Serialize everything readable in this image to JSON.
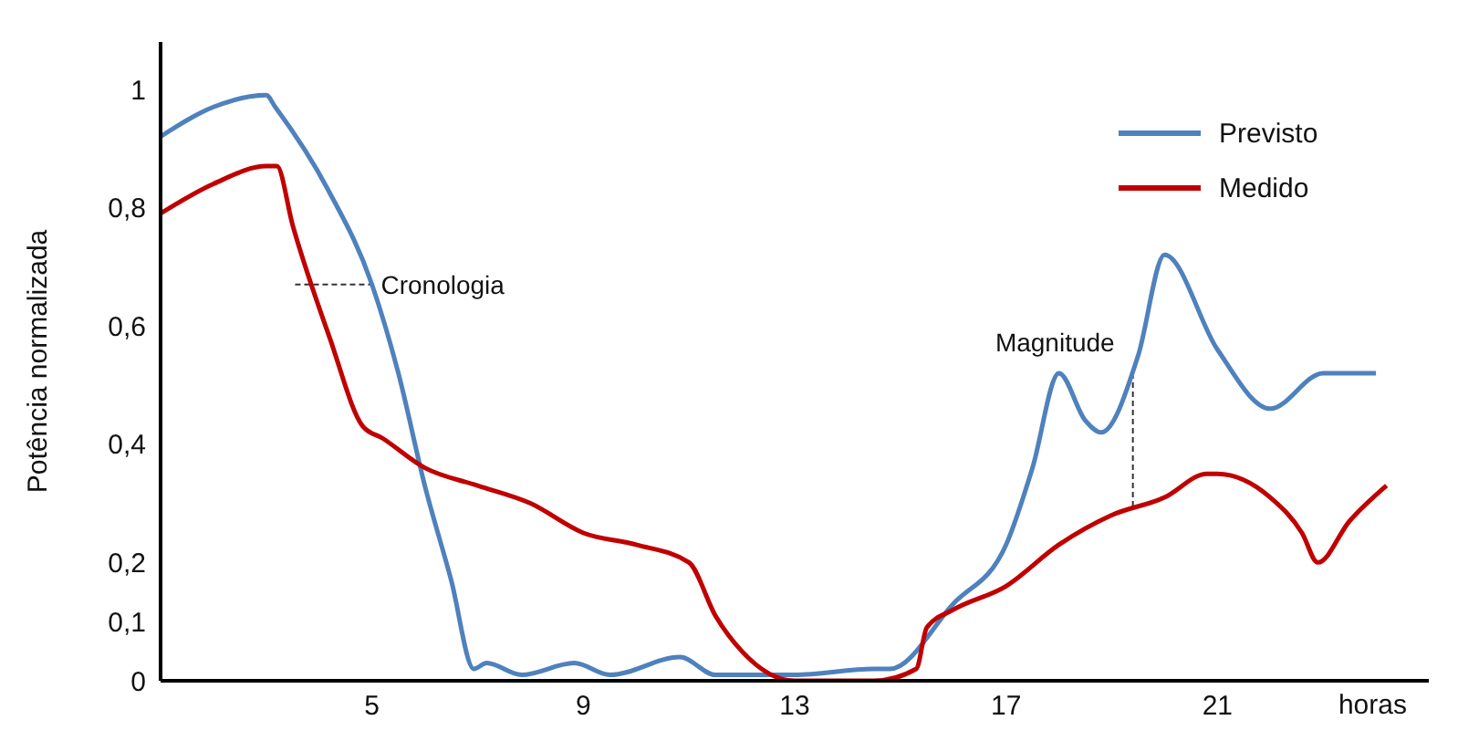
{
  "chart_data": {
    "type": "line",
    "xlabel": "horas",
    "ylabel": "Potência normalizada",
    "xlim": [
      1,
      25
    ],
    "xticks": [
      5,
      9,
      13,
      17,
      21
    ],
    "ylim": [
      0,
      1.08
    ],
    "yticks": [
      0,
      {
        "value": 0.1,
        "label": "0,1"
      },
      {
        "value": 0.2,
        "label": "0,2"
      },
      {
        "value": 0.4,
        "label": "0,4"
      },
      {
        "value": 0.6,
        "label": "0,6"
      },
      {
        "value": 0.8,
        "label": "0,8"
      },
      1
    ],
    "grid": false,
    "legend": "top right",
    "marker": "none",
    "line_style": "solid",
    "annotations": [
      {
        "text": "Cronologia",
        "x": 5.1,
        "y": 0.67
      },
      {
        "text": "Magnitude",
        "x": 19.4,
        "y": 0.52
      }
    ],
    "series": [
      {
        "name": "Previsto",
        "color": "#4f81bd",
        "x": [
          1,
          2,
          3,
          3.17,
          4.17,
          5,
          5.5,
          6,
          6.5,
          6.93,
          7.17,
          7.83,
          8.83,
          9.5,
          10.83,
          11.5,
          13,
          14.5,
          14.8,
          16,
          17,
          17.5,
          18,
          18.5,
          18.8,
          19.5,
          20,
          21,
          22,
          23,
          24
        ],
        "values": [
          0.92,
          0.97,
          0.99,
          0.97,
          0.83,
          0.67,
          0.52,
          0.33,
          0.17,
          0.02,
          0.03,
          0.01,
          0.03,
          0.01,
          0.04,
          0.01,
          0.01,
          0.02,
          0.02,
          0.13,
          0.23,
          0.36,
          0.52,
          0.44,
          0.42,
          0.55,
          0.72,
          0.56,
          0.46,
          0.52,
          0.52
        ]
      },
      {
        "name": "Medido",
        "color": "#c00000",
        "x": [
          1,
          2,
          3,
          3.2,
          3.5,
          4.2,
          4.83,
          5.2,
          6,
          7,
          8,
          9,
          10,
          11,
          11.5,
          12,
          13,
          14.5,
          15.3,
          15.5,
          16,
          17,
          18,
          19,
          20,
          20.8,
          21,
          22,
          22.6,
          22.9,
          23.5,
          24.2
        ],
        "values": [
          0.79,
          0.84,
          0.87,
          0.87,
          0.77,
          0.58,
          0.43,
          0.41,
          0.36,
          0.33,
          0.3,
          0.25,
          0.23,
          0.2,
          0.11,
          0.05,
          0,
          0,
          0.02,
          0.09,
          0.12,
          0.16,
          0.23,
          0.28,
          0.31,
          0.35,
          0.35,
          0.31,
          0.25,
          0.2,
          0.27,
          0.33
        ]
      }
    ]
  }
}
